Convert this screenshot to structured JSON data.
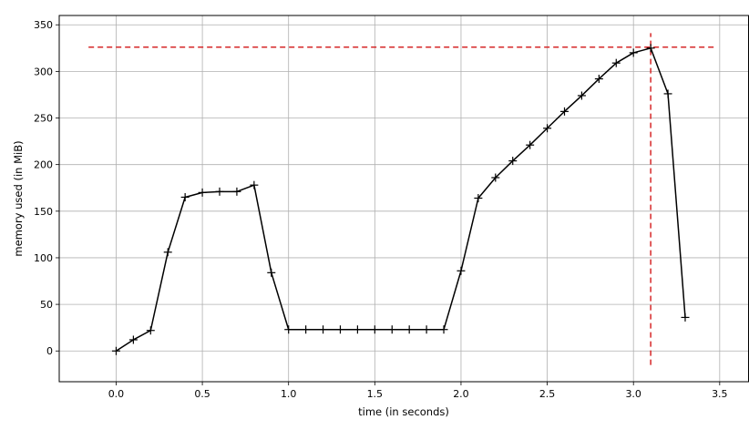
{
  "chart_data": {
    "type": "line",
    "xlabel": "time (in seconds)",
    "ylabel": "memory used (in MiB)",
    "xlim": [
      -0.33,
      3.67
    ],
    "ylim": [
      -33,
      360
    ],
    "xticks": [
      0.0,
      0.5,
      1.0,
      1.5,
      2.0,
      2.5,
      3.0,
      3.5
    ],
    "xtick_labels": [
      "0.0",
      "0.5",
      "1.0",
      "1.5",
      "2.0",
      "2.5",
      "3.0",
      "3.5"
    ],
    "yticks": [
      0,
      50,
      100,
      150,
      200,
      250,
      300,
      350
    ],
    "ytick_labels": [
      "0",
      "50",
      "100",
      "150",
      "200",
      "250",
      "300",
      "350"
    ],
    "grid": true,
    "line_color": "#000000",
    "marker": "plus",
    "series": [
      {
        "x": [
          0.0,
          0.1,
          0.2,
          0.3,
          0.4,
          0.5,
          0.6,
          0.7,
          0.8,
          0.9,
          1.0,
          1.1,
          1.2,
          1.3,
          1.4,
          1.5,
          1.6,
          1.7,
          1.8,
          1.9,
          2.0,
          2.1,
          2.2,
          2.3,
          2.4,
          2.5,
          2.6,
          2.7,
          2.8,
          2.9,
          3.0,
          3.1,
          3.2,
          3.3
        ],
        "y": [
          0,
          12,
          22,
          106,
          165,
          170,
          171,
          171,
          178,
          84,
          23,
          23,
          23,
          23,
          23,
          23,
          23,
          23,
          23,
          23,
          86,
          164,
          186,
          204,
          221,
          239,
          257,
          274,
          292,
          309,
          320,
          325,
          276,
          36
        ]
      }
    ],
    "reference_lines": {
      "color": "#d62728",
      "style": "dashed",
      "horizontal": {
        "y": 326,
        "x_from": -0.16,
        "x_to": 3.48
      },
      "vertical": {
        "x": 3.1,
        "y_from": -15,
        "y_to": 341
      }
    }
  }
}
